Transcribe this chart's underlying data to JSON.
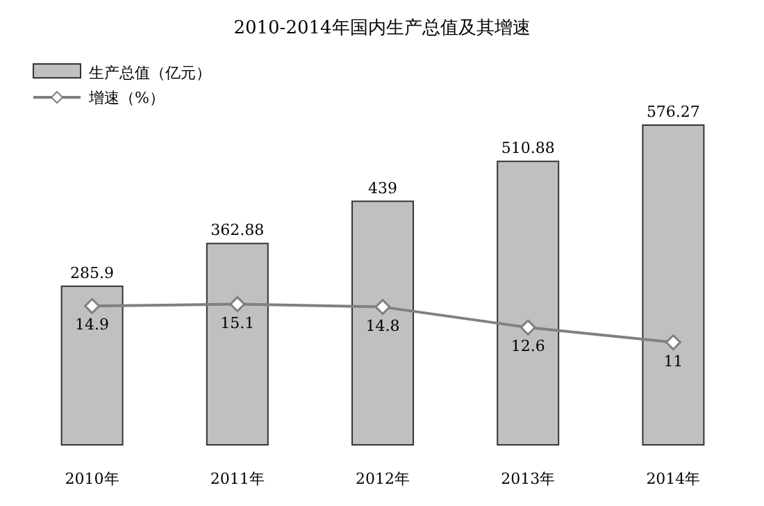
{
  "chart_data": {
    "type": "bar",
    "title": "2010-2014年国内生产总值及其增速",
    "categories": [
      "2010年",
      "2011年",
      "2012年",
      "2013年",
      "2014年"
    ],
    "series": [
      {
        "name": "生产总值（亿元）",
        "color": "#c0c0c0",
        "values": [
          285.9,
          362.88,
          439,
          510.88,
          576.27
        ]
      },
      {
        "name": "增速（%）",
        "type": "line",
        "axis": "y2",
        "color": "#808080",
        "values": [
          14.9,
          15.1,
          14.8,
          12.6,
          11
        ]
      }
    ],
    "data_labels": true,
    "legend": "top left",
    "marker": "diamond"
  }
}
